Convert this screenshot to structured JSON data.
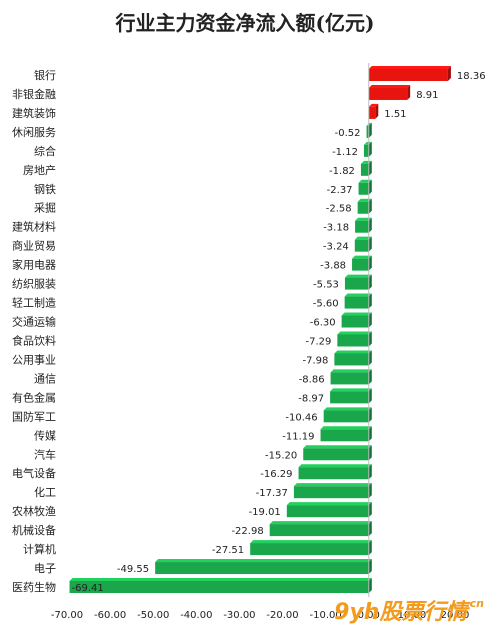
{
  "chart_data": {
    "type": "bar",
    "orientation": "horizontal",
    "title": "行业主力资金净流入额(亿元)",
    "categories": [
      "银行",
      "非银金融",
      "建筑装饰",
      "休闲服务",
      "综合",
      "房地产",
      "钢铁",
      "采掘",
      "建筑材料",
      "商业贸易",
      "家用电器",
      "纺织服装",
      "轻工制造",
      "交通运输",
      "食品饮料",
      "公用事业",
      "通信",
      "有色金属",
      "国防军工",
      "传媒",
      "汽车",
      "电气设备",
      "化工",
      "农林牧渔",
      "机械设备",
      "计算机",
      "电子",
      "医药生物"
    ],
    "values": [
      18.36,
      8.91,
      1.51,
      -0.52,
      -1.12,
      -1.82,
      -2.37,
      -2.58,
      -3.18,
      -3.24,
      -3.88,
      -5.53,
      -5.6,
      -6.3,
      -7.29,
      -7.98,
      -8.86,
      -8.97,
      -10.46,
      -11.19,
      -15.2,
      -16.29,
      -17.37,
      -19.01,
      -22.98,
      -27.51,
      -49.55,
      -69.41
    ],
    "value_labels": [
      "18.36",
      "8.91",
      "1.51",
      "-0.52",
      "-1.12",
      "-1.82",
      "-2.37",
      "-2.58",
      "-3.18",
      "-3.24",
      "-3.88",
      "-5.53",
      "-5.60",
      "-6.30",
      "-7.29",
      "-7.98",
      "-8.86",
      "-8.97",
      "-10.46",
      "-11.19",
      "-15.20",
      "-16.29",
      "-17.37",
      "-19.01",
      "-22.98",
      "-27.51",
      "-49.55",
      "-69.41"
    ],
    "xlim": [
      -70,
      20
    ],
    "x_ticks": [
      "-70.00",
      "-60.00",
      "-50.00",
      "-40.00",
      "-30.00",
      "-20.00",
      "-10.00",
      "0.00",
      "10.00",
      "20.00"
    ],
    "positive_color": "#e8140f",
    "negative_color": "#1aa64a",
    "grid": false,
    "legend": "none"
  },
  "watermark": {
    "main": "9yh股票行情",
    "suffix": ".cn"
  }
}
